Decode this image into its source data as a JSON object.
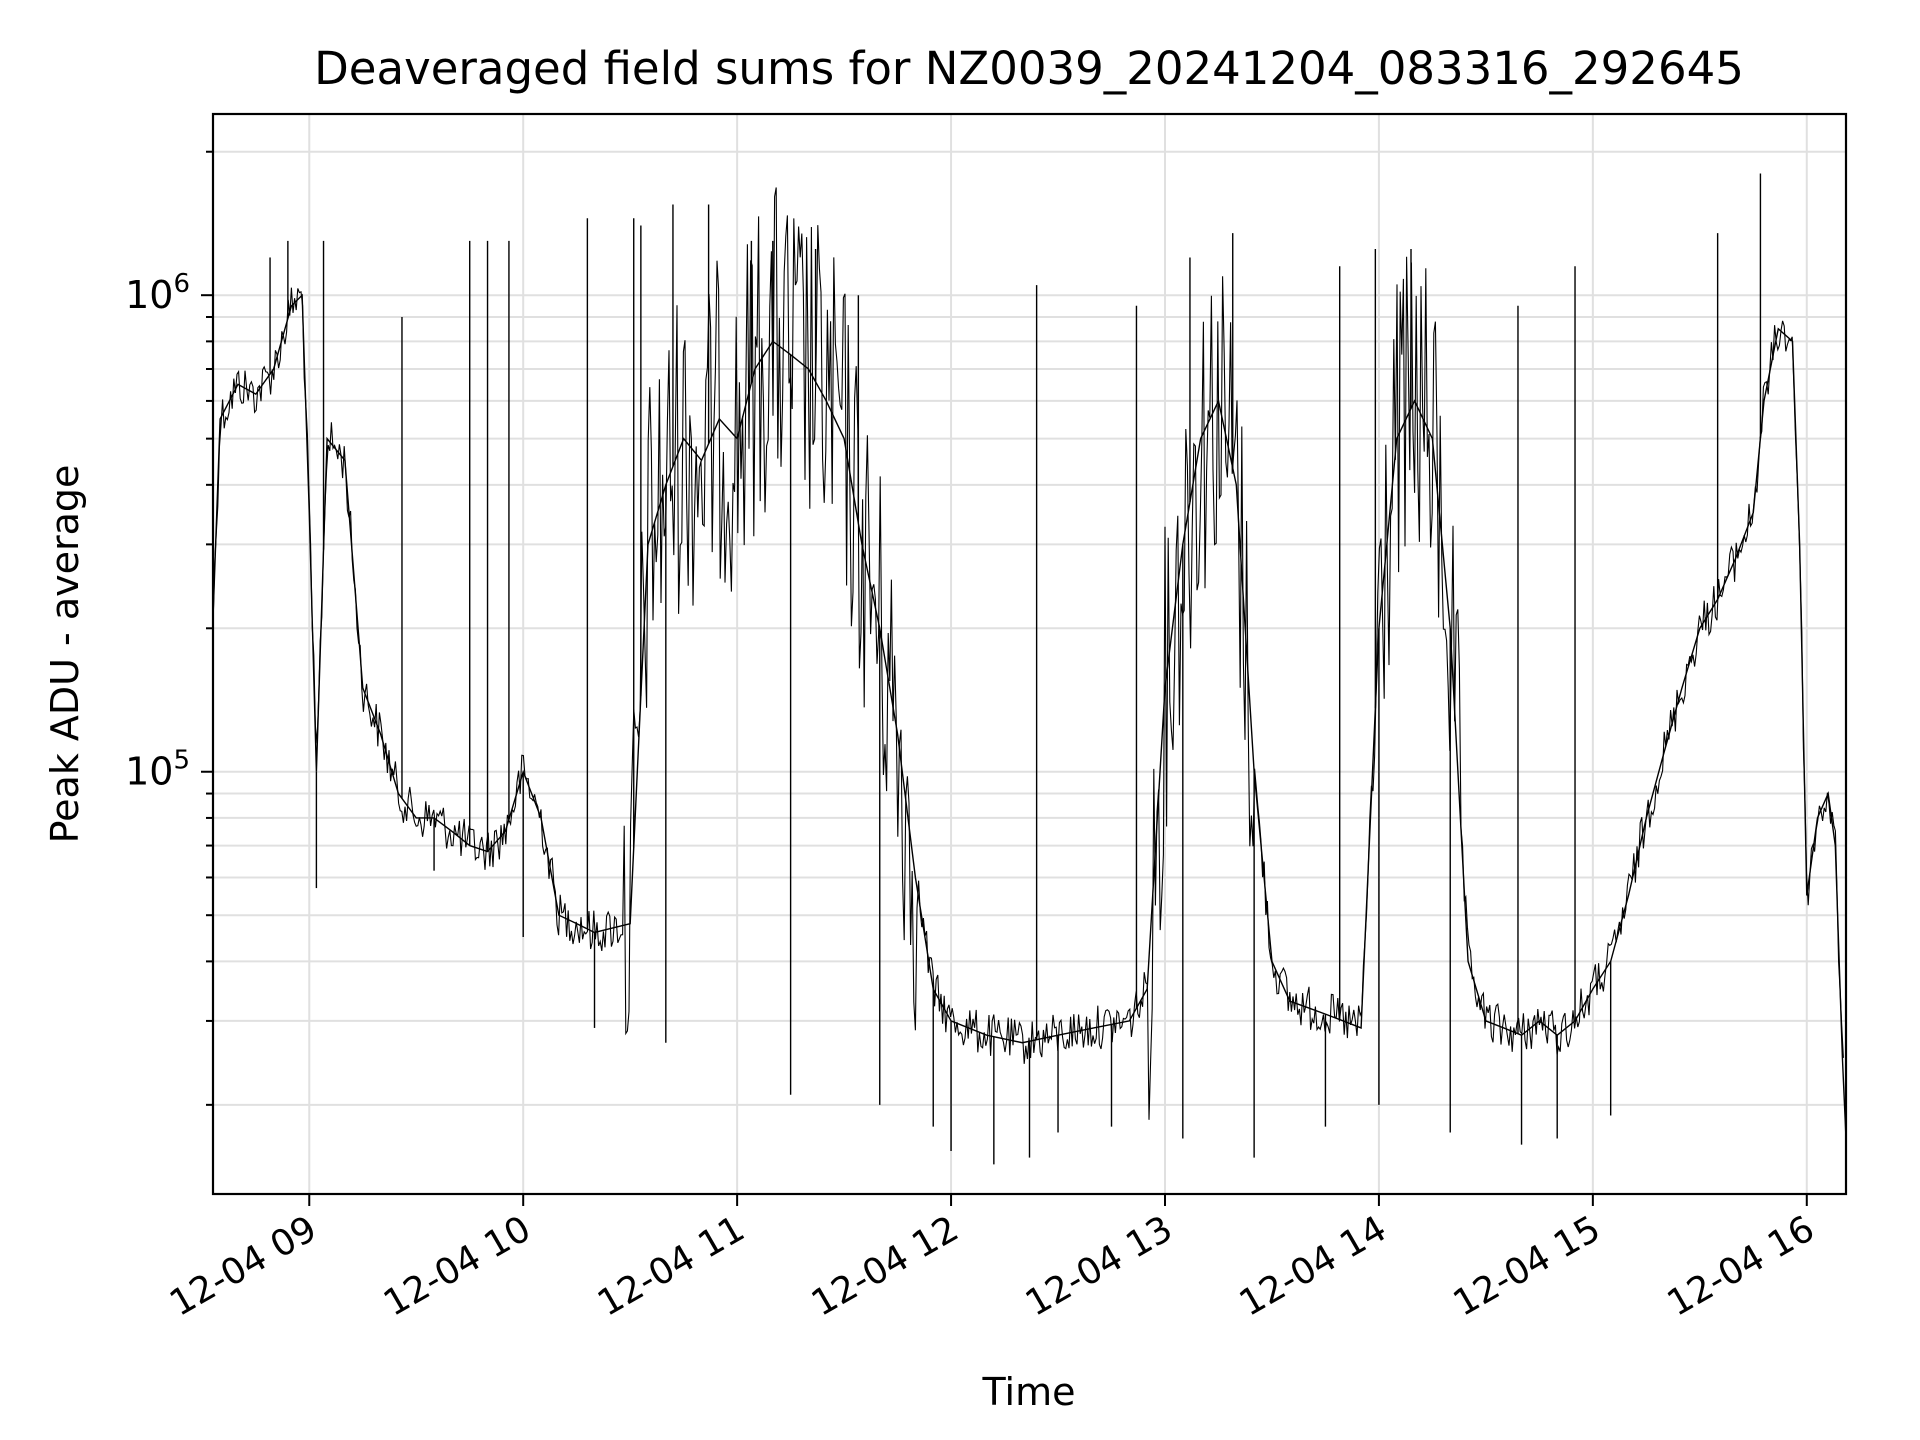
{
  "chart_data": {
    "type": "line",
    "title": "Deaveraged field sums for NZ0039_20241204_083316_292645",
    "xlabel": "Time",
    "ylabel": "Peak ADU - average",
    "yscale": "log",
    "grid": true,
    "line_color": "#000000",
    "xlim": [
      "2024-12-04 08:33",
      "2024-12-04 16:11"
    ],
    "ylim": [
      13000,
      2400000
    ],
    "x_ticks": [
      {
        "value": "2024-12-04 09:00",
        "label": "12-04 09"
      },
      {
        "value": "2024-12-04 10:00",
        "label": "12-04 10"
      },
      {
        "value": "2024-12-04 11:00",
        "label": "12-04 11"
      },
      {
        "value": "2024-12-04 12:00",
        "label": "12-04 12"
      },
      {
        "value": "2024-12-04 13:00",
        "label": "12-04 13"
      },
      {
        "value": "2024-12-04 14:00",
        "label": "12-04 14"
      },
      {
        "value": "2024-12-04 15:00",
        "label": "12-04 15"
      },
      {
        "value": "2024-12-04 16:00",
        "label": "12-04 16"
      }
    ],
    "y_ticks": [
      {
        "value": 100000,
        "base": "10",
        "exp": "5"
      },
      {
        "value": 1000000,
        "base": "10",
        "exp": "6"
      }
    ],
    "series": [
      {
        "points": [
          [
            "2024-12-04 08:33",
            210000
          ],
          [
            "2024-12-04 08:35",
            550000
          ],
          [
            "2024-12-04 08:40",
            650000
          ],
          [
            "2024-12-04 08:45",
            620000
          ],
          [
            "2024-12-04 08:50",
            700000
          ],
          [
            "2024-12-04 08:55",
            950000
          ],
          [
            "2024-12-04 08:58",
            1000000
          ],
          [
            "2024-12-04 09:00",
            350000
          ],
          [
            "2024-12-04 09:02",
            100000
          ],
          [
            "2024-12-04 09:05",
            500000
          ],
          [
            "2024-12-04 09:10",
            450000
          ],
          [
            "2024-12-04 09:15",
            150000
          ],
          [
            "2024-12-04 09:20",
            120000
          ],
          [
            "2024-12-04 09:25",
            90000
          ],
          [
            "2024-12-04 09:30",
            80000
          ],
          [
            "2024-12-04 09:35",
            80000
          ],
          [
            "2024-12-04 09:40",
            75000
          ],
          [
            "2024-12-04 09:45",
            70000
          ],
          [
            "2024-12-04 09:50",
            68000
          ],
          [
            "2024-12-04 09:55",
            75000
          ],
          [
            "2024-12-04 10:00",
            100000
          ],
          [
            "2024-12-04 10:05",
            80000
          ],
          [
            "2024-12-04 10:10",
            50000
          ],
          [
            "2024-12-04 10:15",
            48000
          ],
          [
            "2024-12-04 10:20",
            46000
          ],
          [
            "2024-12-04 10:25",
            47000
          ],
          [
            "2024-12-04 10:30",
            48000
          ],
          [
            "2024-12-04 10:35",
            300000
          ],
          [
            "2024-12-04 10:40",
            400000
          ],
          [
            "2024-12-04 10:45",
            500000
          ],
          [
            "2024-12-04 10:50",
            450000
          ],
          [
            "2024-12-04 10:55",
            550000
          ],
          [
            "2024-12-04 11:00",
            500000
          ],
          [
            "2024-12-04 11:05",
            700000
          ],
          [
            "2024-12-04 11:10",
            800000
          ],
          [
            "2024-12-04 11:15",
            750000
          ],
          [
            "2024-12-04 11:20",
            700000
          ],
          [
            "2024-12-04 11:25",
            600000
          ],
          [
            "2024-12-04 11:30",
            500000
          ],
          [
            "2024-12-04 11:35",
            300000
          ],
          [
            "2024-12-04 11:40",
            200000
          ],
          [
            "2024-12-04 11:45",
            120000
          ],
          [
            "2024-12-04 11:50",
            60000
          ],
          [
            "2024-12-04 11:55",
            35000
          ],
          [
            "2024-12-04 12:00",
            30000
          ],
          [
            "2024-12-04 12:10",
            28000
          ],
          [
            "2024-12-04 12:20",
            27000
          ],
          [
            "2024-12-04 12:30",
            28000
          ],
          [
            "2024-12-04 12:40",
            29000
          ],
          [
            "2024-12-04 12:50",
            30000
          ],
          [
            "2024-12-04 12:55",
            35000
          ],
          [
            "2024-12-04 13:00",
            150000
          ],
          [
            "2024-12-04 13:05",
            300000
          ],
          [
            "2024-12-04 13:10",
            500000
          ],
          [
            "2024-12-04 13:15",
            600000
          ],
          [
            "2024-12-04 13:20",
            400000
          ],
          [
            "2024-12-04 13:25",
            100000
          ],
          [
            "2024-12-04 13:30",
            40000
          ],
          [
            "2024-12-04 13:35",
            33000
          ],
          [
            "2024-12-04 13:40",
            32000
          ],
          [
            "2024-12-04 13:45",
            31000
          ],
          [
            "2024-12-04 13:50",
            30000
          ],
          [
            "2024-12-04 13:55",
            29000
          ],
          [
            "2024-12-04 14:00",
            200000
          ],
          [
            "2024-12-04 14:05",
            500000
          ],
          [
            "2024-12-04 14:10",
            600000
          ],
          [
            "2024-12-04 14:15",
            500000
          ],
          [
            "2024-12-04 14:20",
            200000
          ],
          [
            "2024-12-04 14:25",
            40000
          ],
          [
            "2024-12-04 14:30",
            30000
          ],
          [
            "2024-12-04 14:35",
            29000
          ],
          [
            "2024-12-04 14:40",
            28000
          ],
          [
            "2024-12-04 14:45",
            30000
          ],
          [
            "2024-12-04 14:50",
            28000
          ],
          [
            "2024-12-04 14:55",
            30000
          ],
          [
            "2024-12-04 15:00",
            35000
          ],
          [
            "2024-12-04 15:05",
            40000
          ],
          [
            "2024-12-04 15:10",
            55000
          ],
          [
            "2024-12-04 15:15",
            80000
          ],
          [
            "2024-12-04 15:20",
            110000
          ],
          [
            "2024-12-04 15:25",
            150000
          ],
          [
            "2024-12-04 15:30",
            200000
          ],
          [
            "2024-12-04 15:35",
            230000
          ],
          [
            "2024-12-04 15:40",
            280000
          ],
          [
            "2024-12-04 15:45",
            350000
          ],
          [
            "2024-12-04 15:48",
            600000
          ],
          [
            "2024-12-04 15:52",
            850000
          ],
          [
            "2024-12-04 15:56",
            800000
          ],
          [
            "2024-12-04 15:58",
            300000
          ],
          [
            "2024-12-04 16:00",
            55000
          ],
          [
            "2024-12-04 16:03",
            80000
          ],
          [
            "2024-12-04 16:06",
            90000
          ],
          [
            "2024-12-04 16:08",
            70000
          ],
          [
            "2024-12-04 16:10",
            25000
          ],
          [
            "2024-12-04 16:11",
            17000
          ]
        ],
        "spikes": [
          [
            "2024-12-04 08:49",
            1200000
          ],
          [
            "2024-12-04 08:54",
            1300000
          ],
          [
            "2024-12-04 09:04",
            1300000
          ],
          [
            "2024-12-04 09:26",
            900000
          ],
          [
            "2024-12-04 09:45",
            1300000
          ],
          [
            "2024-12-04 09:50",
            1300000
          ],
          [
            "2024-12-04 09:56",
            1300000
          ],
          [
            "2024-12-04 10:18",
            1450000
          ],
          [
            "2024-12-04 10:31",
            1450000
          ],
          [
            "2024-12-04 10:33",
            1400000
          ],
          [
            "2024-12-04 10:42",
            1550000
          ],
          [
            "2024-12-04 10:52",
            1550000
          ],
          [
            "2024-12-04 11:04",
            1300000
          ],
          [
            "2024-12-04 11:10",
            1300000
          ],
          [
            "2024-12-04 11:22",
            1250000
          ],
          [
            "2024-12-04 11:34",
            1000000
          ],
          [
            "2024-12-04 12:24",
            1050000
          ],
          [
            "2024-12-04 12:52",
            950000
          ],
          [
            "2024-12-04 13:07",
            1200000
          ],
          [
            "2024-12-04 13:19",
            1350000
          ],
          [
            "2024-12-04 13:49",
            1150000
          ],
          [
            "2024-12-04 13:59",
            1250000
          ],
          [
            "2024-12-04 14:09",
            1250000
          ],
          [
            "2024-12-04 14:39",
            950000
          ],
          [
            "2024-12-04 14:55",
            1150000
          ],
          [
            "2024-12-04 15:35",
            1350000
          ],
          [
            "2024-12-04 15:47",
            1800000
          ]
        ],
        "dips": [
          [
            "2024-12-04 09:02",
            57000
          ],
          [
            "2024-12-04 09:35",
            62000
          ],
          [
            "2024-12-04 10:00",
            45000
          ],
          [
            "2024-12-04 10:20",
            29000
          ],
          [
            "2024-12-04 10:40",
            27000
          ],
          [
            "2024-12-04 11:15",
            21000
          ],
          [
            "2024-12-04 11:40",
            20000
          ],
          [
            "2024-12-04 11:55",
            18000
          ],
          [
            "2024-12-04 12:00",
            16000
          ],
          [
            "2024-12-04 12:12",
            15000
          ],
          [
            "2024-12-04 12:22",
            15500
          ],
          [
            "2024-12-04 12:30",
            17500
          ],
          [
            "2024-12-04 12:45",
            18000
          ],
          [
            "2024-12-04 13:05",
            17000
          ],
          [
            "2024-12-04 13:25",
            15500
          ],
          [
            "2024-12-04 13:45",
            18000
          ],
          [
            "2024-12-04 14:00",
            20000
          ],
          [
            "2024-12-04 14:20",
            17500
          ],
          [
            "2024-12-04 14:40",
            16500
          ],
          [
            "2024-12-04 14:50",
            17000
          ],
          [
            "2024-12-04 15:05",
            19000
          ]
        ]
      }
    ]
  }
}
